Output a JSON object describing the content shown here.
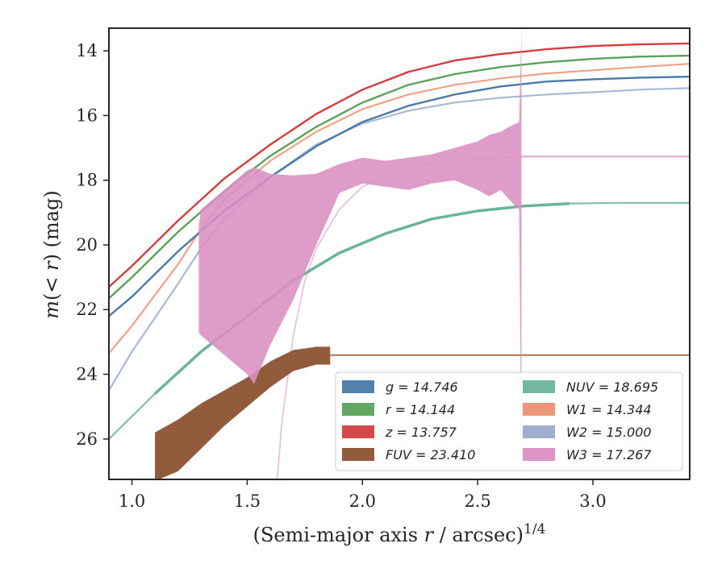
{
  "chart_data": {
    "type": "line",
    "xlabel": "(Semi-major axis r / arcsec)^1/4",
    "ylabel": "m(< r) (mag)",
    "xlim": [
      0.9,
      3.42
    ],
    "ylim": [
      27.25,
      13.3
    ],
    "y_inverted": true,
    "grid": false,
    "legend_position": "lower-right",
    "x_ticks": [
      "1.0",
      "1.5",
      "2.0",
      "2.5",
      "3.0"
    ],
    "x_tick_values": [
      1.0,
      1.5,
      2.0,
      2.5,
      3.0
    ],
    "y_ticks": [
      "14",
      "16",
      "18",
      "20",
      "22",
      "24",
      "26"
    ],
    "y_tick_values": [
      14,
      16,
      18,
      20,
      22,
      24,
      26
    ],
    "series": [
      {
        "key": "g",
        "name": "g = 14.746",
        "color": "#4c7aa8",
        "x": [
          0.9,
          1.0,
          1.2,
          1.4,
          1.6,
          1.8,
          2.0,
          2.2,
          2.4,
          2.6,
          2.8,
          3.0,
          3.2,
          3.42
        ],
        "y": [
          22.2,
          21.6,
          20.2,
          18.95,
          17.9,
          16.95,
          16.2,
          15.7,
          15.35,
          15.1,
          14.95,
          14.88,
          14.83,
          14.8
        ]
      },
      {
        "key": "r",
        "name": "r = 14.144",
        "color": "#5aa25a",
        "x": [
          0.9,
          1.0,
          1.2,
          1.4,
          1.6,
          1.8,
          2.0,
          2.2,
          2.4,
          2.6,
          2.8,
          3.0,
          3.2,
          3.42
        ],
        "y": [
          21.65,
          21.0,
          19.6,
          18.35,
          17.25,
          16.35,
          15.6,
          15.05,
          14.72,
          14.5,
          14.35,
          14.25,
          14.18,
          14.15
        ]
      },
      {
        "key": "z",
        "name": "z = 13.757",
        "color": "#d13f3f",
        "x": [
          0.9,
          1.0,
          1.2,
          1.4,
          1.6,
          1.8,
          2.0,
          2.2,
          2.4,
          2.6,
          2.8,
          3.0,
          3.2,
          3.42
        ],
        "y": [
          21.3,
          20.65,
          19.25,
          17.95,
          16.9,
          15.95,
          15.2,
          14.65,
          14.3,
          14.1,
          13.95,
          13.85,
          13.8,
          13.77
        ]
      },
      {
        "key": "FUV",
        "name": "FUV = 23.410",
        "color": "#8c5230",
        "x": [
          1.1,
          1.2,
          1.3,
          1.4,
          1.5,
          1.6,
          1.7,
          1.8,
          1.86
        ],
        "y_upper": [
          25.8,
          25.4,
          24.9,
          24.5,
          24.1,
          23.6,
          23.25,
          23.15,
          23.15
        ],
        "y_lower": [
          27.3,
          27.0,
          26.3,
          25.6,
          25.0,
          24.4,
          23.9,
          23.7,
          23.7
        ],
        "extension": {
          "x": [
            1.86,
            3.42
          ],
          "y": [
            23.41,
            23.41
          ]
        }
      },
      {
        "key": "NUV",
        "name": "NUV = 18.695",
        "color": "#6cb39e",
        "x": [
          0.9,
          1.1,
          1.3,
          1.5,
          1.7,
          1.9,
          2.1,
          2.3,
          2.5,
          2.7,
          2.9,
          3.1,
          3.42
        ],
        "y": [
          26.0,
          24.6,
          23.3,
          22.2,
          21.1,
          20.25,
          19.65,
          19.2,
          18.95,
          18.8,
          18.72,
          18.7,
          18.7
        ]
      },
      {
        "key": "W1",
        "name": "W1 = 14.344",
        "color": "#eb9070",
        "x": [
          0.9,
          1.0,
          1.2,
          1.3,
          1.4,
          1.6,
          1.8,
          2.0,
          2.2,
          2.4,
          2.6,
          2.8,
          3.0,
          3.2,
          3.42
        ],
        "y": [
          23.35,
          22.5,
          20.6,
          19.5,
          18.6,
          17.4,
          16.5,
          15.8,
          15.35,
          15.05,
          14.85,
          14.7,
          14.6,
          14.5,
          14.4
        ]
      },
      {
        "key": "W2",
        "name": "W2 = 15.000",
        "color": "#9aabcb",
        "x": [
          0.9,
          1.0,
          1.2,
          1.3,
          1.4,
          1.6,
          1.8,
          2.0,
          2.2,
          2.4,
          2.6,
          2.8,
          3.0,
          3.2,
          3.42
        ],
        "y": [
          24.5,
          23.3,
          21.2,
          20.1,
          19.2,
          17.9,
          16.9,
          16.25,
          15.85,
          15.6,
          15.45,
          15.35,
          15.28,
          15.2,
          15.15
        ]
      },
      {
        "key": "W3",
        "name": "W3 = 17.267",
        "color": "#da8fc2",
        "band_x": [
          1.29,
          1.3,
          1.4,
          1.5,
          1.53,
          1.6,
          1.7,
          1.8,
          1.9,
          2.0,
          2.1,
          2.2,
          2.3,
          2.4,
          2.5,
          2.55,
          2.6,
          2.65,
          2.68,
          2.69
        ],
        "y_upper": [
          19.4,
          18.9,
          18.3,
          17.7,
          17.6,
          17.8,
          17.85,
          17.8,
          17.5,
          17.3,
          17.4,
          17.3,
          17.2,
          17.0,
          16.8,
          16.6,
          16.5,
          16.3,
          16.2,
          13.3
        ],
        "y_lower": [
          22.7,
          22.8,
          23.4,
          24.0,
          24.3,
          23.1,
          21.7,
          20.0,
          18.4,
          18.1,
          18.2,
          18.3,
          18.1,
          18.0,
          18.3,
          18.5,
          18.3,
          18.7,
          18.9,
          27.3
        ],
        "extension": {
          "x": [
            2.69,
            3.42
          ],
          "y": [
            17.267,
            17.267
          ]
        },
        "faint_curve": {
          "x": [
            1.63,
            1.65,
            1.7,
            1.75,
            1.8,
            1.9,
            2.0,
            2.2,
            2.4,
            2.6,
            2.69
          ],
          "y": [
            27.3,
            25.5,
            22.8,
            21.1,
            20.1,
            18.9,
            18.2,
            17.6,
            17.4,
            17.3,
            17.27
          ]
        }
      }
    ]
  }
}
